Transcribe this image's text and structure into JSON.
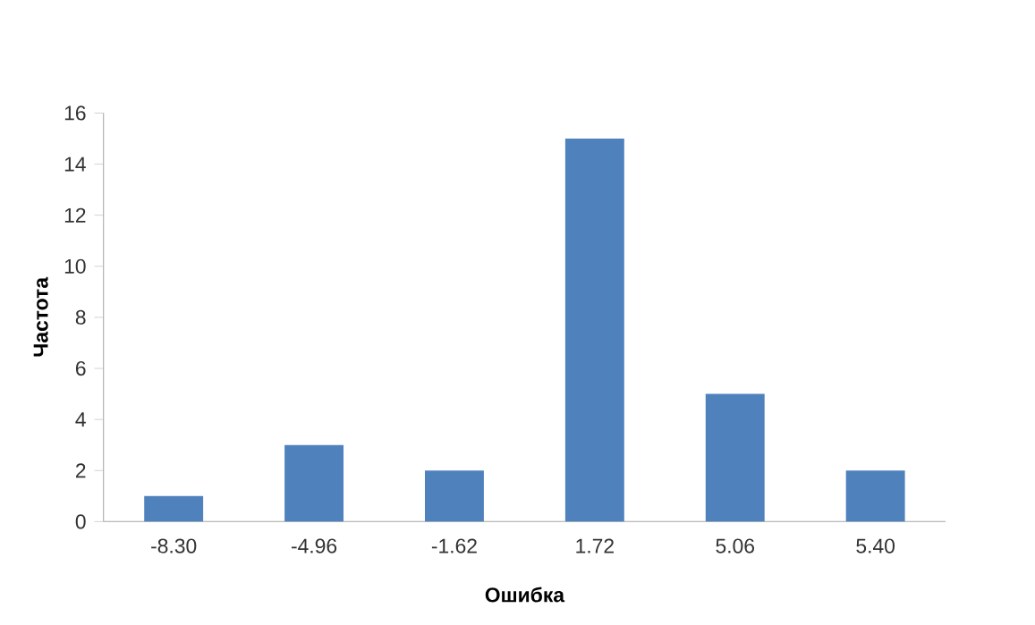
{
  "chart_data": {
    "type": "bar",
    "xlabel": "Ошибка",
    "ylabel": "Частота",
    "categories": [
      "-8.30",
      "-4.96",
      "-1.62",
      "1.72",
      "5.06",
      "5.40"
    ],
    "values": [
      1,
      3,
      2,
      15,
      5,
      2
    ],
    "color": "#4f81bd",
    "ylim": [
      0,
      16
    ],
    "yticks": [
      0,
      2,
      4,
      6,
      8,
      10,
      12,
      14,
      16
    ]
  }
}
